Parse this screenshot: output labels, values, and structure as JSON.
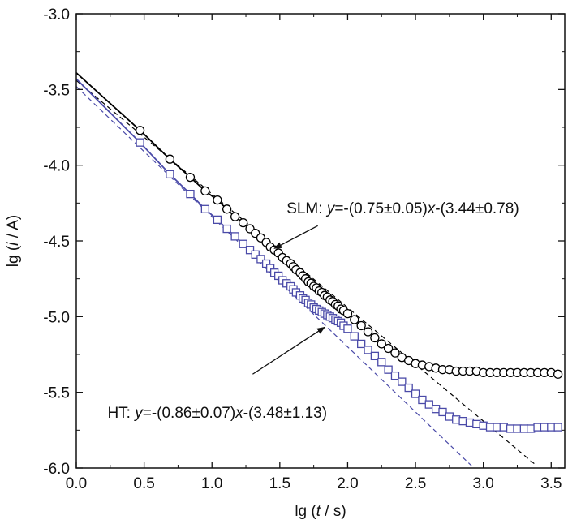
{
  "chart_data": {
    "type": "scatter",
    "xlabel": {
      "prefix": "lg (",
      "var": "t",
      "suffix": " / s)"
    },
    "ylabel": {
      "prefix": "lg (",
      "var": "i",
      "suffix": " / A)"
    },
    "xlim": [
      0.0,
      3.6
    ],
    "ylim": [
      -6.0,
      -3.0
    ],
    "xticks": [
      "0.0",
      "0.5",
      "1.0",
      "1.5",
      "2.0",
      "2.5",
      "3.0",
      "3.5"
    ],
    "yticks": [
      "-3.0",
      "-3.5",
      "-4.0",
      "-4.5",
      "-5.0",
      "-5.5",
      "-6.0"
    ],
    "xtick_values": [
      0.0,
      0.5,
      1.0,
      1.5,
      2.0,
      2.5,
      3.0,
      3.5
    ],
    "ytick_values": [
      -3.0,
      -3.5,
      -4.0,
      -4.5,
      -5.0,
      -5.5,
      -6.0
    ],
    "grid": false,
    "series": [
      {
        "name": "SLM",
        "marker": "circle",
        "color": "#000000",
        "x": [
          0.47,
          0.69,
          0.84,
          0.95,
          1.04,
          1.11,
          1.17,
          1.23,
          1.28,
          1.32,
          1.36,
          1.4,
          1.43,
          1.46,
          1.49,
          1.52,
          1.55,
          1.58,
          1.6,
          1.62,
          1.65,
          1.67,
          1.69,
          1.71,
          1.73,
          1.75,
          1.77,
          1.79,
          1.81,
          1.83,
          1.85,
          1.87,
          1.89,
          1.91,
          1.93,
          1.95,
          1.97,
          2.0,
          2.05,
          2.1,
          2.15,
          2.2,
          2.25,
          2.3,
          2.35,
          2.4,
          2.45,
          2.5,
          2.55,
          2.6,
          2.65,
          2.7,
          2.75,
          2.8,
          2.85,
          2.9,
          2.95,
          3.0,
          3.05,
          3.1,
          3.15,
          3.2,
          3.25,
          3.3,
          3.35,
          3.4,
          3.45,
          3.5,
          3.55
        ],
        "y": [
          -3.77,
          -3.96,
          -4.08,
          -4.17,
          -4.23,
          -4.29,
          -4.34,
          -4.38,
          -4.42,
          -4.45,
          -4.48,
          -4.51,
          -4.54,
          -4.56,
          -4.58,
          -4.61,
          -4.63,
          -4.65,
          -4.67,
          -4.69,
          -4.71,
          -4.73,
          -4.75,
          -4.77,
          -4.78,
          -4.8,
          -4.81,
          -4.83,
          -4.84,
          -4.86,
          -4.87,
          -4.89,
          -4.9,
          -4.92,
          -4.93,
          -4.95,
          -4.96,
          -4.98,
          -5.02,
          -5.06,
          -5.1,
          -5.14,
          -5.18,
          -5.21,
          -5.24,
          -5.27,
          -5.29,
          -5.31,
          -5.32,
          -5.33,
          -5.34,
          -5.35,
          -5.35,
          -5.36,
          -5.36,
          -5.36,
          -5.36,
          -5.37,
          -5.37,
          -5.37,
          -5.37,
          -5.37,
          -5.37,
          -5.37,
          -5.37,
          -5.37,
          -5.37,
          -5.37,
          -5.38
        ]
      },
      {
        "name": "HT",
        "marker": "square",
        "color": "#4a4aa8",
        "x": [
          0.47,
          0.69,
          0.84,
          0.95,
          1.04,
          1.11,
          1.17,
          1.23,
          1.28,
          1.32,
          1.36,
          1.4,
          1.43,
          1.46,
          1.49,
          1.52,
          1.55,
          1.58,
          1.6,
          1.62,
          1.65,
          1.67,
          1.69,
          1.71,
          1.73,
          1.75,
          1.77,
          1.79,
          1.81,
          1.83,
          1.85,
          1.87,
          1.89,
          1.91,
          1.93,
          1.95,
          1.97,
          2.0,
          2.05,
          2.1,
          2.15,
          2.2,
          2.25,
          2.3,
          2.35,
          2.4,
          2.45,
          2.5,
          2.55,
          2.6,
          2.65,
          2.7,
          2.75,
          2.8,
          2.85,
          2.9,
          2.95,
          3.0,
          3.05,
          3.1,
          3.15,
          3.2,
          3.25,
          3.3,
          3.35,
          3.4,
          3.45,
          3.5,
          3.55
        ],
        "y": [
          -3.85,
          -4.06,
          -4.19,
          -4.29,
          -4.36,
          -4.42,
          -4.47,
          -4.52,
          -4.56,
          -4.59,
          -4.62,
          -4.65,
          -4.68,
          -4.71,
          -4.73,
          -4.76,
          -4.78,
          -4.8,
          -4.82,
          -4.84,
          -4.86,
          -4.88,
          -4.89,
          -4.91,
          -4.92,
          -4.94,
          -4.95,
          -4.96,
          -4.97,
          -4.98,
          -4.99,
          -5.0,
          -5.01,
          -5.02,
          -5.03,
          -5.04,
          -5.06,
          -5.08,
          -5.13,
          -5.18,
          -5.22,
          -5.26,
          -5.3,
          -5.35,
          -5.39,
          -5.43,
          -5.47,
          -5.51,
          -5.55,
          -5.58,
          -5.61,
          -5.63,
          -5.66,
          -5.68,
          -5.69,
          -5.7,
          -5.71,
          -5.72,
          -5.73,
          -5.73,
          -5.73,
          -5.74,
          -5.74,
          -5.74,
          -5.74,
          -5.73,
          -5.73,
          -5.73,
          -5.73
        ]
      }
    ],
    "fits": [
      {
        "series": "SLM",
        "slope": -0.75,
        "intercept": -3.44,
        "x_range": [
          0.0,
          3.38
        ],
        "color": "#000000"
      },
      {
        "series": "HT",
        "slope": -0.86,
        "intercept": -3.48,
        "x_range": [
          0.0,
          2.93
        ],
        "color": "#4a4aa8"
      }
    ],
    "annotations": [
      {
        "name": "SLM",
        "lead": "SLM:  ",
        "var_y": "y",
        "mid": "=-(0.75±0.05)",
        "var_x": "x",
        "tail": "-(3.44±0.78)",
        "text_at": [
          1.55,
          -4.28
        ],
        "arrow_from": [
          1.78,
          -4.4
        ],
        "arrow_to": [
          1.46,
          -4.55
        ]
      },
      {
        "name": "HT",
        "lead": "HT:  ",
        "var_y": "y",
        "mid": "=-(0.86±0.07)",
        "var_x": "x",
        "tail": "-(3.48±1.13)",
        "text_at": [
          0.23,
          -5.63
        ],
        "arrow_from": [
          1.3,
          -5.38
        ],
        "arrow_to": [
          1.83,
          -5.07
        ]
      }
    ]
  }
}
